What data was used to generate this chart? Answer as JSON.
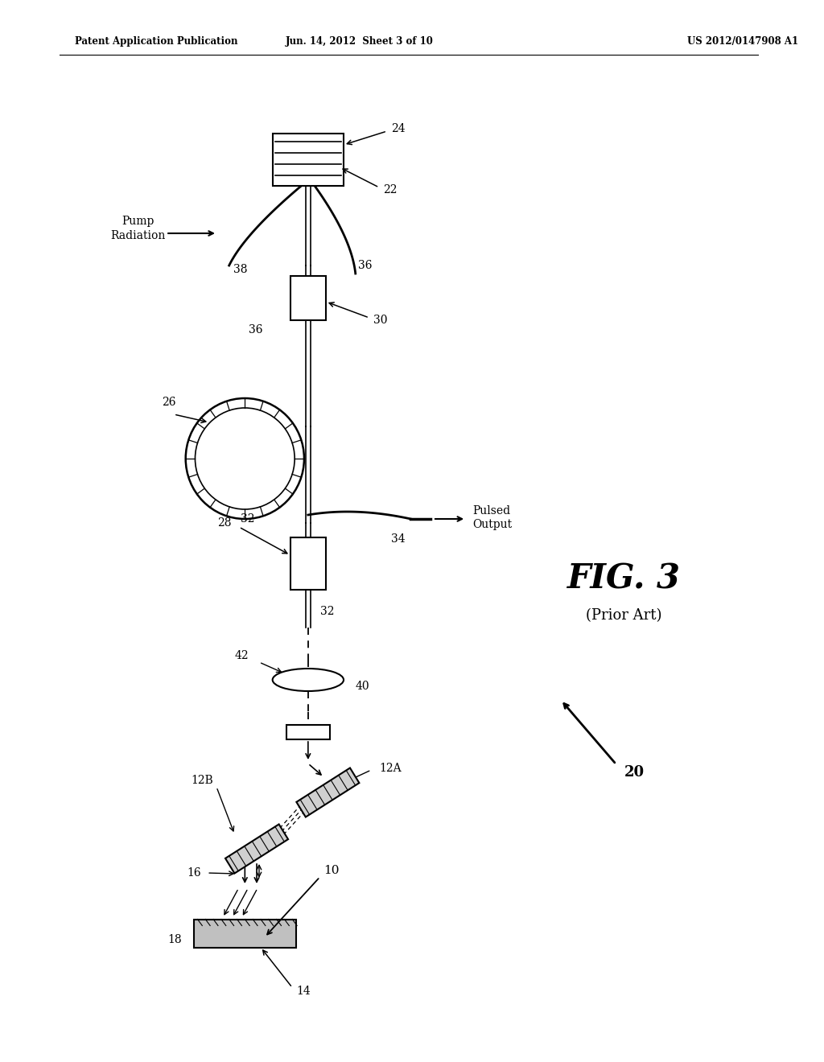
{
  "header_left": "Patent Application Publication",
  "header_center": "Jun. 14, 2012  Sheet 3 of 10",
  "header_right": "US 2012/0147908 A1",
  "fig_label": "FIG. 3",
  "fig_sublabel": "(Prior Art)",
  "background_color": "#ffffff",
  "line_color": "#000000"
}
